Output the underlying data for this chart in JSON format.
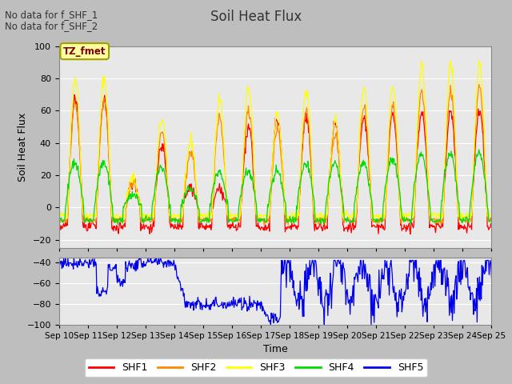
{
  "title": "Soil Heat Flux",
  "ylabel": "Soil Heat Flux",
  "xlabel": "Time",
  "text_no_data1": "No data for f_SHF_1",
  "text_no_data2": "No data for f_SHF_2",
  "tz_label": "TZ_fmet",
  "colors": {
    "SHF1": "#ff0000",
    "SHF2": "#ff8800",
    "SHF3": "#ffff00",
    "SHF4": "#00dd00",
    "SHF5": "#0000ee"
  },
  "legend_labels": [
    "SHF1",
    "SHF2",
    "SHF3",
    "SHF4",
    "SHF5"
  ],
  "x_tick_labels": [
    "Sep 10",
    "Sep 11",
    "Sep 12",
    "Sep 13",
    "Sep 14",
    "Sep 15",
    "Sep 16",
    "Sep 17",
    "Sep 18",
    "Sep 19",
    "Sep 20",
    "Sep 21",
    "Sep 22",
    "Sep 23",
    "Sep 24",
    "Sep 25"
  ],
  "upper_ylim": [
    -25,
    100
  ],
  "lower_ylim": [
    -100,
    -35
  ],
  "upper_yticks": [
    -20,
    0,
    20,
    40,
    60,
    80,
    100
  ],
  "lower_yticks": [
    -100,
    -80,
    -60,
    -40
  ],
  "background_color": "#e8e8e8",
  "grid_color": "#ffffff",
  "fig_bg": "#bebebe"
}
